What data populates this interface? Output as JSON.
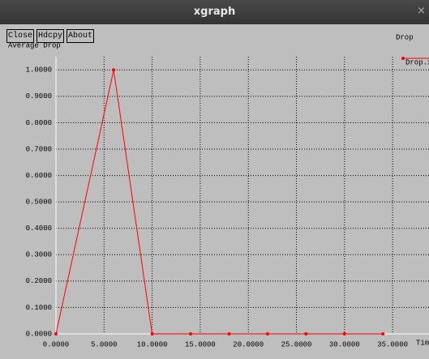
{
  "window_title": "xgraph",
  "buttons": [
    "Close",
    "Hdcpy",
    "About"
  ],
  "chart_data": {
    "type": "line",
    "title": "Drop",
    "y_label": "Average Drop",
    "x_label": "Tim",
    "x": [
      0,
      6,
      10,
      14,
      18,
      22,
      26,
      30,
      34
    ],
    "series": [
      {
        "name": "Drop.x",
        "color": "#ff0000",
        "values": [
          0,
          1,
          0,
          0,
          0,
          0,
          0,
          0,
          0
        ]
      }
    ],
    "xlim": [
      0,
      38
    ],
    "ylim": [
      0,
      1.05
    ],
    "xticks": [
      {
        "value": 0,
        "label": "0.0000"
      },
      {
        "value": 5,
        "label": "5.0000"
      },
      {
        "value": 10,
        "label": "10.0000"
      },
      {
        "value": 15,
        "label": "15.0000"
      },
      {
        "value": 20,
        "label": "20.0000"
      },
      {
        "value": 25,
        "label": "25.0000"
      },
      {
        "value": 30,
        "label": "30.0000"
      },
      {
        "value": 35,
        "label": "35.0000"
      }
    ],
    "yticks": [
      {
        "value": 0,
        "label": "0.0000"
      },
      {
        "value": 0.1,
        "label": "0.1000"
      },
      {
        "value": 0.2,
        "label": "0.2000"
      },
      {
        "value": 0.3,
        "label": "0.3000"
      },
      {
        "value": 0.4,
        "label": "0.4000"
      },
      {
        "value": 0.5,
        "label": "0.5000"
      },
      {
        "value": 0.6,
        "label": "0.6000"
      },
      {
        "value": 0.7,
        "label": "0.7000"
      },
      {
        "value": 0.8,
        "label": "0.8000"
      },
      {
        "value": 0.9,
        "label": "0.9000"
      },
      {
        "value": 1,
        "label": "1.0000"
      }
    ],
    "grid": true
  }
}
